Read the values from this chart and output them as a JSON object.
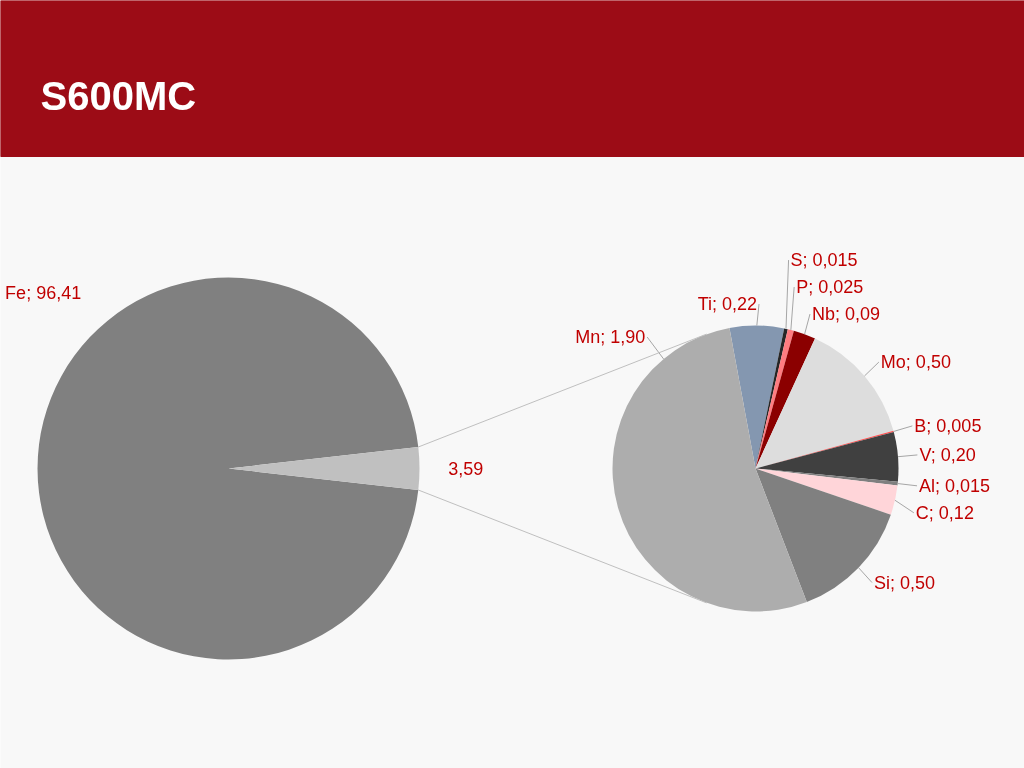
{
  "chart_data": [
    {
      "type": "pie",
      "title": "S600MC",
      "categories": [
        "Fe",
        null
      ],
      "values": [
        96.41,
        3.59
      ],
      "colors": [
        "#808080",
        "#c0c0c0"
      ],
      "value_labels": [
        "96,41",
        "3,59"
      ]
    },
    {
      "type": "pie",
      "categories": [
        "Ti",
        "S",
        "P",
        "Nb",
        "Mo",
        "B",
        "V",
        "Al",
        "C",
        "Si",
        "Mn"
      ],
      "values": [
        0.22,
        0.015,
        0.025,
        0.09,
        0.5,
        0.005,
        0.2,
        0.015,
        0.12,
        0.5,
        1.9
      ],
      "colors": [
        "#8497b0",
        "#262626",
        "#ff7c80",
        "#8b0000",
        "#dddddd",
        "#ff5050",
        "#404040",
        "#7f7f7f",
        "#ffd5d9",
        "#808080",
        "#adadad"
      ],
      "value_labels": [
        "0,22",
        "0,015",
        "0,025",
        "0,09",
        "0,50",
        "0,005",
        "0,20",
        "0,015",
        "0,12",
        "0,50",
        "1,90"
      ]
    }
  ]
}
